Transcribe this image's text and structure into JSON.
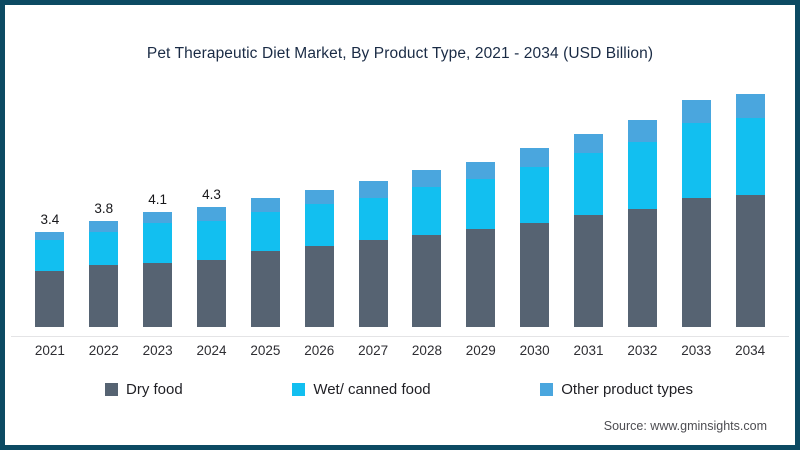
{
  "frame": {
    "border_color": "#0c4a63",
    "background_color": "#ffffff"
  },
  "title": "Pet Therapeutic Diet Market, By Product Type, 2021 - 2034 (USD Billion)",
  "source": "Source: www.gminsights.com",
  "chart_data": {
    "type": "bar",
    "stacked": true,
    "title": "Pet Therapeutic Diet Market, By Product Type, 2021 - 2034 (USD Billion)",
    "xlabel": "",
    "ylabel": "USD Billion",
    "ylim": [
      0,
      9.5
    ],
    "grid": false,
    "legend_position": "bottom",
    "categories": [
      "2021",
      "2022",
      "2023",
      "2024",
      "2025",
      "2026",
      "2027",
      "2028",
      "2029",
      "2030",
      "2031",
      "2032",
      "2033",
      "2034"
    ],
    "series": [
      {
        "name": "Dry food",
        "color": "#566372",
        "values": [
          2.0,
          2.2,
          2.3,
          2.4,
          2.7,
          2.9,
          3.1,
          3.3,
          3.5,
          3.7,
          4.0,
          4.2,
          4.6,
          5.0
        ]
      },
      {
        "name": "Wet/ canned food",
        "color": "#12bff0",
        "values": [
          1.1,
          1.2,
          1.4,
          1.4,
          1.4,
          1.5,
          1.5,
          1.7,
          1.8,
          2.0,
          2.2,
          2.4,
          2.7,
          2.9
        ]
      },
      {
        "name": "Other product types",
        "color": "#4aa6de",
        "values": [
          0.3,
          0.4,
          0.4,
          0.5,
          0.5,
          0.5,
          0.6,
          0.6,
          0.6,
          0.7,
          0.7,
          0.8,
          0.8,
          0.9
        ]
      }
    ],
    "totals": [
      3.4,
      3.8,
      4.1,
      4.3,
      4.6,
      4.9,
      5.2,
      5.6,
      5.9,
      6.4,
      6.9,
      7.4,
      8.1,
      8.8
    ],
    "bar_value_labels": [
      "3.4",
      "3.8",
      "4.1",
      "4.3",
      "",
      "",
      "",
      "",
      "",
      "",
      "",
      "",
      "",
      ""
    ]
  }
}
